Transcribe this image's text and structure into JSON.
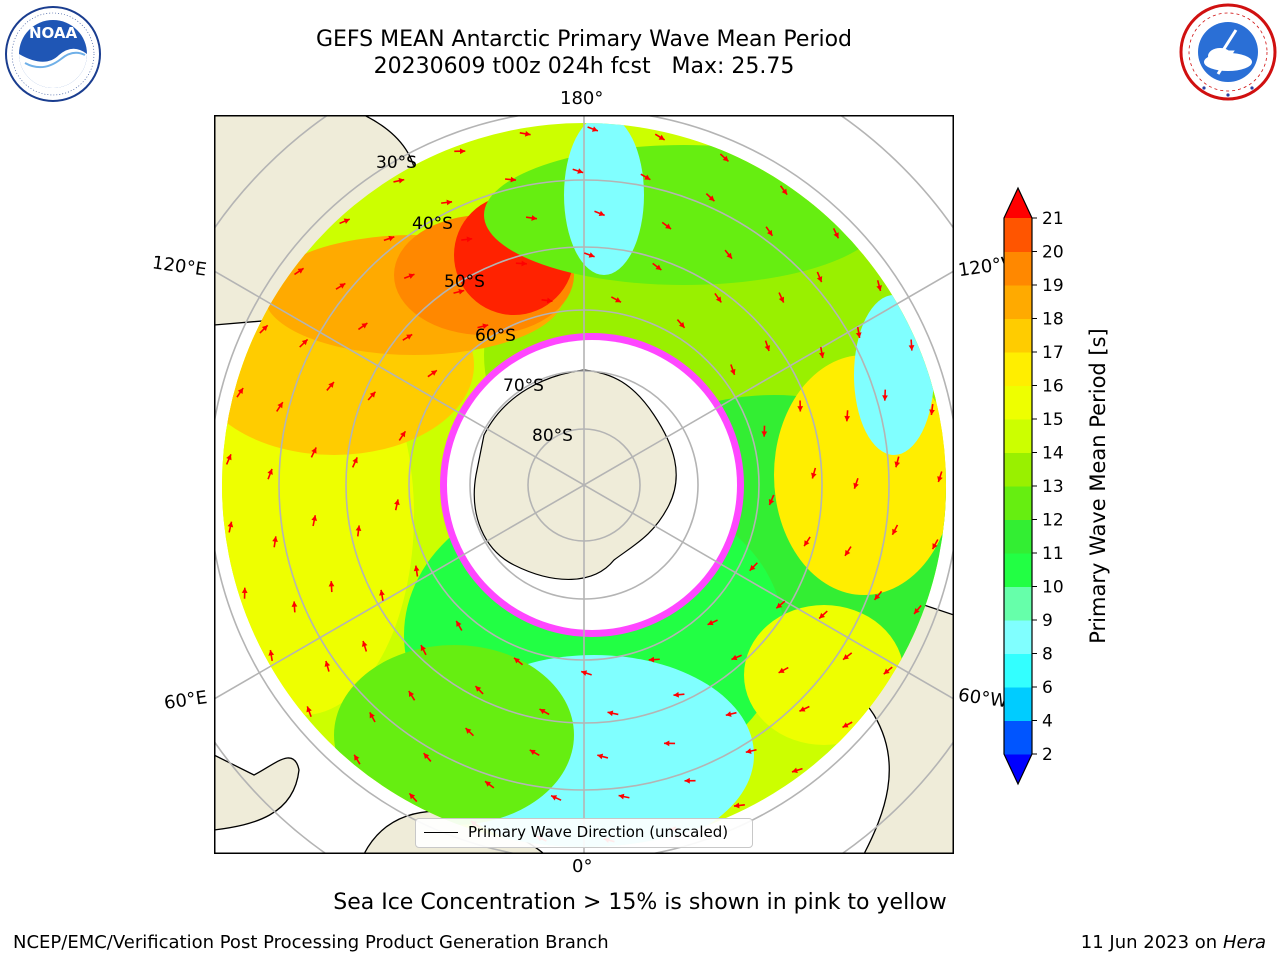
{
  "header": {
    "title_line1": "GEFS MEAN Antarctic Primary Wave Mean Period",
    "title_line2": "20230609 t00z 024h fcst   Max: 25.75"
  },
  "logos": {
    "left": "noaa-logo",
    "right": "nws-logo"
  },
  "map": {
    "projection": "south-polar-stereographic",
    "longitude_labels": {
      "top": "180°",
      "bottom": "0°",
      "upper_left": "120°E",
      "upper_right": "120°W",
      "lower_left": "60°E",
      "lower_right": "60°W"
    },
    "latitude_labels": [
      "30°S",
      "40°S",
      "50°S",
      "60°S",
      "70°S",
      "80°S"
    ],
    "legend": "Primary Wave Direction (unscaled)",
    "colors": {
      "land": "#efecd9",
      "ice_pink": "#ff46ff",
      "ice_yellow": "#ffd25a",
      "arrow": "#ff0000",
      "grid": "#b4b4b4"
    }
  },
  "colorbar": {
    "label": "Primary Wave Mean Period [s]",
    "tick_labels": [
      "2",
      "4",
      "6",
      "8",
      "9",
      "10",
      "11",
      "12",
      "13",
      "14",
      "15",
      "16",
      "17",
      "18",
      "19",
      "20",
      "21"
    ],
    "colors": [
      "#0055ff",
      "#00ccff",
      "#33ffff",
      "#80ffff",
      "#66ffaa",
      "#22ff44",
      "#33ee33",
      "#66ee11",
      "#99f000",
      "#ccff00",
      "#eeff00",
      "#ffee00",
      "#ffcc00",
      "#ffaa00",
      "#ff8800",
      "#ff5500",
      "#ff2200"
    ],
    "under_color": "#0000ff",
    "over_color": "#ff0000"
  },
  "footer": {
    "note": "Sea Ice Concentration > 15% is shown in pink to yellow",
    "credit": "NCEP/EMC/Verification Post Processing Product Generation Branch",
    "date": "11 Jun 2023 on",
    "machine": "Hera"
  }
}
